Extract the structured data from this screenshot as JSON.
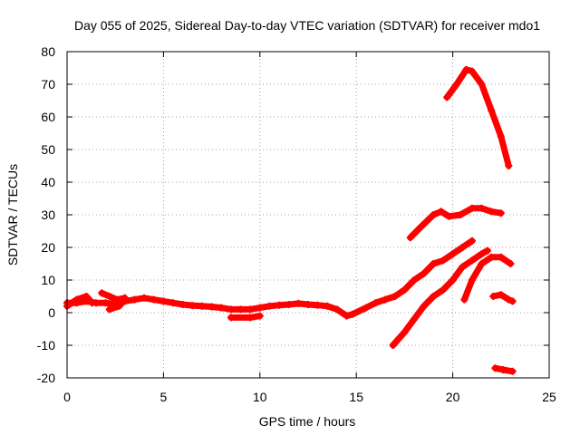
{
  "chart_data": {
    "type": "scatter",
    "title": "Day 055 of 2025, Sidereal Day-to-day VTEC variation (SDTVAR) for receiver mdo1",
    "xlabel": "GPS time / hours",
    "ylabel": "SDTVAR / TECUs",
    "xlim": [
      0,
      25
    ],
    "ylim": [
      -20,
      80
    ],
    "x_ticks": [
      0,
      5,
      10,
      15,
      20,
      25
    ],
    "y_ticks": [
      -20,
      -10,
      0,
      10,
      20,
      30,
      40,
      50,
      60,
      70,
      80
    ],
    "x_tick_labels": [
      "0",
      "5",
      "10",
      "15",
      "20",
      "25"
    ],
    "y_tick_labels": [
      "-20",
      "-10",
      "0",
      "10",
      "20",
      "30",
      "40",
      "50",
      "60",
      "70",
      "80"
    ],
    "grid": true,
    "marker_color": "#ff0000",
    "series": [
      {
        "name": "base",
        "points": [
          [
            0,
            3
          ],
          [
            0.5,
            3
          ],
          [
            1,
            3.5
          ],
          [
            1.5,
            3
          ],
          [
            2,
            3
          ],
          [
            2.5,
            2.5
          ],
          [
            3,
            3.5
          ],
          [
            3.5,
            4
          ],
          [
            4,
            4.5
          ],
          [
            4.5,
            4
          ],
          [
            5,
            3.5
          ],
          [
            5.5,
            3
          ],
          [
            6,
            2.5
          ],
          [
            6.5,
            2.2
          ],
          [
            7,
            2
          ],
          [
            7.5,
            1.8
          ],
          [
            8,
            1.5
          ],
          [
            8.5,
            1
          ],
          [
            9,
            1
          ],
          [
            9.5,
            1
          ],
          [
            10,
            1.5
          ],
          [
            10.5,
            2
          ],
          [
            11,
            2.3
          ],
          [
            11.5,
            2.5
          ],
          [
            12,
            2.8
          ],
          [
            12.5,
            2.5
          ],
          [
            13,
            2.3
          ],
          [
            13.5,
            2
          ],
          [
            14,
            1
          ],
          [
            14.5,
            -1
          ],
          [
            14.8,
            -0.5
          ],
          [
            15.5,
            1.5
          ],
          [
            16,
            3
          ],
          [
            16.5,
            4
          ],
          [
            17,
            5
          ],
          [
            17.5,
            7
          ],
          [
            18,
            10
          ],
          [
            18.5,
            12
          ],
          [
            19,
            15
          ],
          [
            19.5,
            16
          ],
          [
            20,
            18
          ],
          [
            20.5,
            20
          ],
          [
            21,
            22
          ]
        ]
      },
      {
        "name": "base-wiggle-a",
        "points": [
          [
            0,
            2
          ],
          [
            0.5,
            4
          ],
          [
            1,
            5
          ],
          [
            1.3,
            3
          ]
        ]
      },
      {
        "name": "base-wiggle-b",
        "points": [
          [
            1.8,
            6
          ],
          [
            2.2,
            5
          ],
          [
            2.6,
            4
          ],
          [
            3,
            4.5
          ]
        ]
      },
      {
        "name": "base-wiggle-c",
        "points": [
          [
            2.2,
            1
          ],
          [
            2.7,
            2
          ],
          [
            3,
            4
          ]
        ]
      },
      {
        "name": "dip",
        "points": [
          [
            8.5,
            -1.5
          ],
          [
            9.5,
            -1.5
          ],
          [
            10,
            -1
          ]
        ]
      },
      {
        "name": "rise-a",
        "points": [
          [
            16.9,
            -10
          ],
          [
            17.5,
            -6
          ],
          [
            18,
            -2
          ],
          [
            18.5,
            2
          ],
          [
            19,
            5
          ],
          [
            19.5,
            7
          ],
          [
            20,
            10
          ],
          [
            20.5,
            14
          ],
          [
            21,
            16
          ],
          [
            21.5,
            18
          ],
          [
            21.8,
            19
          ]
        ]
      },
      {
        "name": "rise-b",
        "points": [
          [
            20.6,
            4
          ],
          [
            21,
            10
          ],
          [
            21.5,
            15
          ],
          [
            22,
            17
          ],
          [
            22.5,
            17
          ],
          [
            23,
            15
          ]
        ]
      },
      {
        "name": "mid",
        "points": [
          [
            17.8,
            23
          ],
          [
            18.3,
            26
          ],
          [
            19,
            30
          ],
          [
            19.4,
            31
          ],
          [
            19.8,
            29.5
          ],
          [
            20.4,
            30
          ],
          [
            21,
            32
          ],
          [
            21.5,
            32
          ],
          [
            22,
            31
          ],
          [
            22.5,
            30.5
          ]
        ]
      },
      {
        "name": "peak",
        "points": [
          [
            19.7,
            66
          ],
          [
            20.2,
            70
          ],
          [
            20.7,
            74.5
          ],
          [
            21,
            74
          ],
          [
            21.5,
            70
          ],
          [
            22,
            62
          ],
          [
            22.5,
            54
          ],
          [
            22.9,
            45
          ]
        ]
      },
      {
        "name": "small",
        "points": [
          [
            22.1,
            5
          ],
          [
            22.5,
            5.5
          ],
          [
            22.9,
            4
          ],
          [
            23.1,
            3.5
          ]
        ]
      },
      {
        "name": "low",
        "points": [
          [
            22.2,
            -17
          ],
          [
            22.6,
            -17.5
          ],
          [
            23.1,
            -18
          ]
        ]
      }
    ]
  }
}
